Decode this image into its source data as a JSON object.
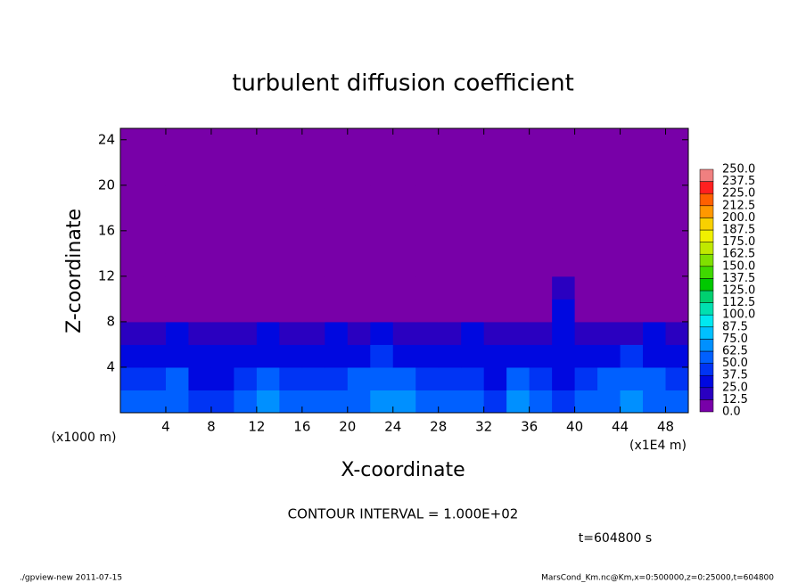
{
  "chart_data": {
    "type": "contour",
    "title": "turbulent diffusion coefficient",
    "x_label": "X-coordinate",
    "y_label": "Z-coordinate",
    "x_unit": "(x1E4 m)",
    "y_unit": "(x1000 m)",
    "contour_interval": "CONTOUR INTERVAL = 1.000E+02",
    "time_label": "t=604800 s",
    "footer_left": "./gpview-new   2011-07-15",
    "footer_right": "MarsCond_Km.nc@Km,x=0:500000,z=0:25000,t=604800",
    "xlim": [
      0,
      50
    ],
    "ylim": [
      0,
      25
    ],
    "xticks": [
      4,
      8,
      12,
      16,
      20,
      24,
      28,
      32,
      36,
      40,
      44,
      48
    ],
    "yticks": [
      4,
      8,
      12,
      16,
      20,
      24
    ],
    "x": [
      1,
      3,
      5,
      7,
      9,
      11,
      13,
      15,
      17,
      19,
      21,
      23,
      25,
      27,
      29,
      31,
      33,
      35,
      37,
      39,
      41,
      43,
      45,
      47,
      49
    ],
    "y": [
      1,
      3,
      5,
      7,
      9,
      11,
      13,
      15,
      17,
      19,
      21,
      23
    ],
    "values": [
      [
        55,
        50,
        60,
        45,
        40,
        55,
        65,
        60,
        50,
        55,
        60,
        70,
        65,
        60,
        55,
        50,
        45,
        70,
        60,
        45,
        55,
        60,
        65,
        60,
        55
      ],
      [
        40,
        45,
        50,
        35,
        30,
        45,
        50,
        45,
        40,
        45,
        50,
        55,
        50,
        45,
        40,
        40,
        35,
        50,
        45,
        30,
        45,
        50,
        55,
        50,
        45
      ],
      [
        35,
        30,
        35,
        30,
        25,
        30,
        35,
        30,
        35,
        30,
        35,
        40,
        35,
        30,
        30,
        35,
        25,
        35,
        30,
        25,
        35,
        35,
        40,
        35,
        30
      ],
      [
        20,
        20,
        25,
        20,
        15,
        20,
        25,
        20,
        20,
        25,
        20,
        25,
        20,
        20,
        20,
        25,
        15,
        20,
        20,
        30,
        20,
        20,
        20,
        25,
        20
      ],
      [
        0,
        0,
        0,
        0,
        0,
        0,
        0,
        0,
        0,
        0,
        0,
        0,
        0,
        0,
        0,
        0,
        0,
        0,
        0,
        25,
        0,
        0,
        0,
        0,
        0
      ],
      [
        0,
        0,
        0,
        0,
        0,
        0,
        0,
        0,
        0,
        0,
        0,
        0,
        0,
        0,
        0,
        0,
        0,
        0,
        0,
        15,
        0,
        0,
        0,
        0,
        0
      ],
      [
        0,
        0,
        0,
        0,
        0,
        0,
        0,
        0,
        0,
        0,
        0,
        0,
        0,
        0,
        0,
        0,
        0,
        0,
        0,
        0,
        0,
        0,
        0,
        0,
        0
      ],
      [
        0,
        0,
        0,
        0,
        0,
        0,
        0,
        0,
        0,
        0,
        0,
        0,
        0,
        0,
        0,
        0,
        0,
        0,
        0,
        0,
        0,
        0,
        0,
        0,
        0
      ],
      [
        0,
        0,
        0,
        0,
        0,
        0,
        0,
        0,
        0,
        0,
        0,
        0,
        0,
        0,
        0,
        0,
        0,
        0,
        0,
        0,
        0,
        0,
        0,
        0,
        0
      ],
      [
        0,
        0,
        0,
        0,
        0,
        0,
        0,
        0,
        0,
        0,
        0,
        0,
        0,
        0,
        0,
        0,
        0,
        0,
        0,
        0,
        0,
        0,
        0,
        0,
        0
      ],
      [
        0,
        0,
        0,
        0,
        0,
        0,
        0,
        0,
        0,
        0,
        0,
        0,
        0,
        0,
        0,
        0,
        0,
        0,
        0,
        0,
        0,
        0,
        0,
        0,
        0
      ],
      [
        0,
        0,
        0,
        0,
        0,
        0,
        0,
        0,
        0,
        0,
        0,
        0,
        0,
        0,
        0,
        0,
        0,
        0,
        0,
        0,
        0,
        0,
        0,
        0,
        0
      ]
    ],
    "levels": [
      {
        "value": 0,
        "label": "0.0"
      },
      12.5,
      {
        "value": 25,
        "label": "25.0"
      },
      37.5,
      {
        "value": 50,
        "label": "50.0"
      },
      62.5,
      {
        "value": 75,
        "label": "75.0"
      },
      87.5,
      {
        "value": 100,
        "label": "100.0"
      },
      112.5,
      {
        "value": 125,
        "label": "125.0"
      },
      137.5,
      {
        "value": 150,
        "label": "150.0"
      },
      162.5,
      {
        "value": 175,
        "label": "175.0"
      },
      187.5,
      {
        "value": 200,
        "label": "200.0"
      },
      212.5,
      {
        "value": 225,
        "label": "225.0"
      },
      237.5,
      {
        "value": 250,
        "label": "250.0"
      }
    ],
    "colors": [
      "#7800a8",
      "#2a00c0",
      "#0008e0",
      "#0034f4",
      "#0060ff",
      "#0090ff",
      "#00c0ff",
      "#00e8f0",
      "#00e0b0",
      "#00d070",
      "#00c800",
      "#40d800",
      "#80e000",
      "#c0e800",
      "#f0f000",
      "#f8d000",
      "#ff9800",
      "#ff6000",
      "#ff2020",
      "#f08080"
    ]
  }
}
